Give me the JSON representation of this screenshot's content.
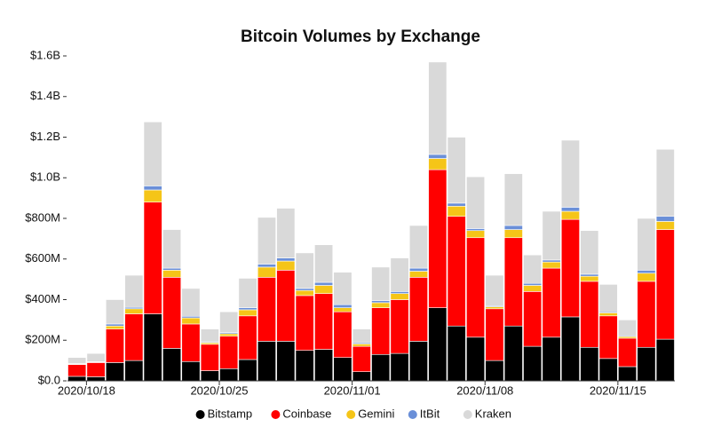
{
  "chart_data": {
    "type": "stacked_bar",
    "title": "Bitcoin Volumes by Exchange",
    "x": [
      "2020/10/17",
      "2020/10/18",
      "2020/10/19",
      "2020/10/20",
      "2020/10/21",
      "2020/10/22",
      "2020/10/23",
      "2020/10/24",
      "2020/10/25",
      "2020/10/26",
      "2020/10/27",
      "2020/10/28",
      "2020/10/29",
      "2020/10/30",
      "2020/10/31",
      "2020/11/01",
      "2020/11/02",
      "2020/11/03",
      "2020/11/04",
      "2020/11/05",
      "2020/11/06",
      "2020/11/07",
      "2020/11/08",
      "2020/11/09",
      "2020/11/10",
      "2020/11/11",
      "2020/11/12",
      "2020/11/13",
      "2020/11/14",
      "2020/11/15",
      "2020/11/16",
      "2020/11/17"
    ],
    "xticks": [
      "2020/10/18",
      "2020/10/25",
      "2020/11/01",
      "2020/11/08",
      "2020/11/15"
    ],
    "series": [
      {
        "name": "Bitstamp",
        "color": "#000000",
        "values": [
          22000000,
          20000000,
          90000000,
          100000000,
          330000000,
          160000000,
          95000000,
          50000000,
          60000000,
          105000000,
          195000000,
          195000000,
          150000000,
          155000000,
          115000000,
          45000000,
          130000000,
          135000000,
          195000000,
          360000000,
          270000000,
          215000000,
          100000000,
          270000000,
          170000000,
          215000000,
          315000000,
          165000000,
          110000000,
          70000000,
          165000000,
          205000000
        ]
      },
      {
        "name": "Coinbase",
        "color": "#ff0000",
        "values": [
          58000000,
          70000000,
          165000000,
          230000000,
          550000000,
          350000000,
          185000000,
          130000000,
          160000000,
          215000000,
          315000000,
          350000000,
          270000000,
          275000000,
          225000000,
          125000000,
          230000000,
          265000000,
          315000000,
          680000000,
          540000000,
          490000000,
          255000000,
          435000000,
          270000000,
          340000000,
          480000000,
          325000000,
          210000000,
          140000000,
          325000000,
          540000000
        ]
      },
      {
        "name": "Gemini",
        "color": "#f5c518",
        "values": [
          3000000,
          2000000,
          15000000,
          25000000,
          60000000,
          35000000,
          30000000,
          8000000,
          12000000,
          30000000,
          50000000,
          45000000,
          25000000,
          40000000,
          20000000,
          12000000,
          25000000,
          30000000,
          30000000,
          55000000,
          50000000,
          35000000,
          10000000,
          40000000,
          30000000,
          30000000,
          40000000,
          25000000,
          15000000,
          8000000,
          40000000,
          40000000
        ]
      },
      {
        "name": "ItBit",
        "color": "#6a8fd8",
        "values": [
          2000000,
          2000000,
          10000000,
          7000000,
          20000000,
          10000000,
          8000000,
          4000000,
          6000000,
          10000000,
          15000000,
          15000000,
          10000000,
          15000000,
          15000000,
          6000000,
          10000000,
          10000000,
          15000000,
          20000000,
          15000000,
          10000000,
          5000000,
          20000000,
          10000000,
          10000000,
          20000000,
          10000000,
          5000000,
          4000000,
          15000000,
          25000000
        ]
      },
      {
        "name": "Kraken",
        "color": "#d9d9d9",
        "values": [
          30000000,
          41000000,
          120000000,
          158000000,
          315000000,
          190000000,
          137000000,
          63000000,
          102000000,
          145000000,
          230000000,
          245000000,
          175000000,
          185000000,
          160000000,
          67000000,
          165000000,
          165000000,
          210000000,
          455000000,
          325000000,
          255000000,
          150000000,
          255000000,
          140000000,
          240000000,
          330000000,
          215000000,
          135000000,
          78000000,
          255000000,
          330000000
        ]
      }
    ],
    "ylim": [
      0,
      1600000000
    ],
    "yticks": [
      {
        "value": 0,
        "label": "$0.0"
      },
      {
        "value": 200000000,
        "label": "$200M"
      },
      {
        "value": 400000000,
        "label": "$400M"
      },
      {
        "value": 600000000,
        "label": "$600M"
      },
      {
        "value": 800000000,
        "label": "$800M"
      },
      {
        "value": 1000000000,
        "label": "$1.0B"
      },
      {
        "value": 1200000000,
        "label": "$1.2B"
      },
      {
        "value": 1400000000,
        "label": "$1.4B"
      },
      {
        "value": 1600000000,
        "label": "$1.6B"
      }
    ],
    "legend": "bottom"
  }
}
